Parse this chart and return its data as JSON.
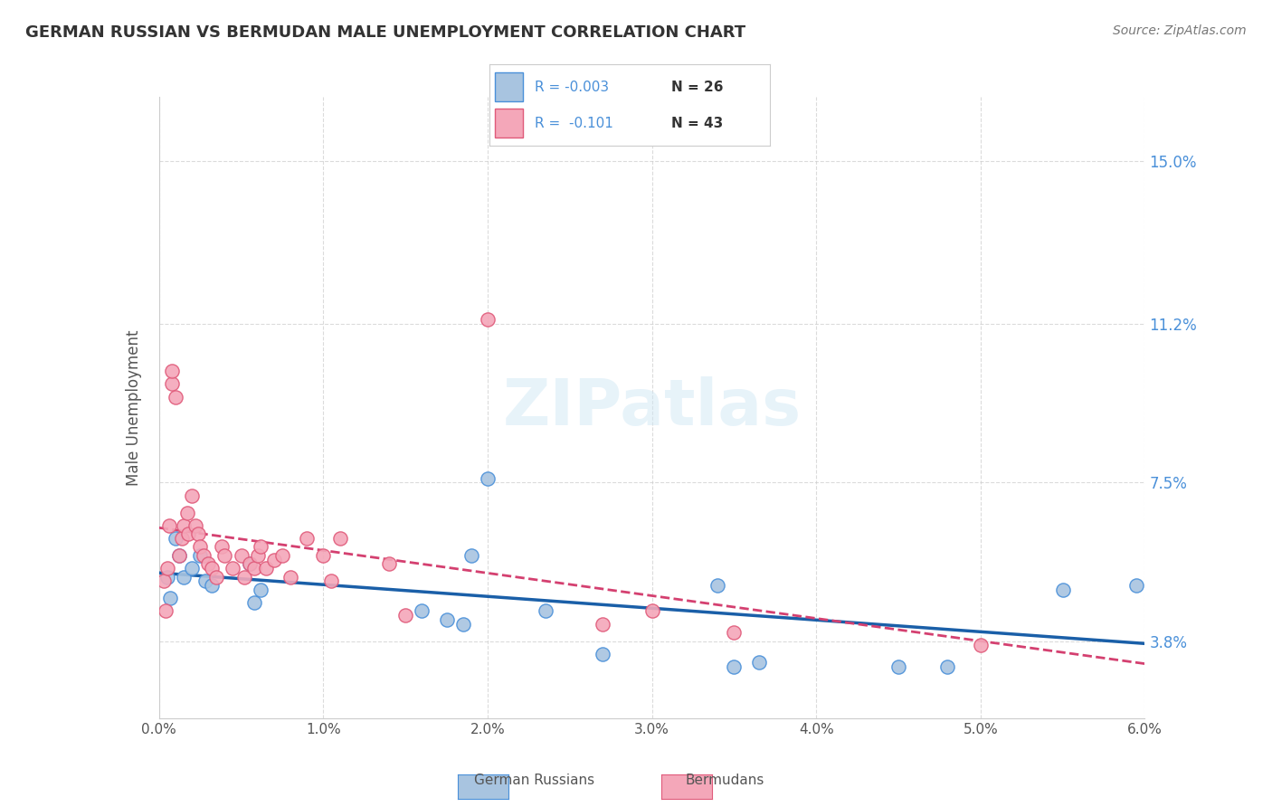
{
  "title": "GERMAN RUSSIAN VS BERMUDAN MALE UNEMPLOYMENT CORRELATION CHART",
  "source": "Source: ZipAtlas.com",
  "xlabel_ticks": [
    "0.0%",
    "1.0%",
    "2.0%",
    "3.0%",
    "4.0%",
    "5.0%",
    "6.0%"
  ],
  "ylabel_ticks": [
    "3.8%",
    "7.5%",
    "11.2%",
    "15.0%"
  ],
  "ylabel_label": "Male Unemployment",
  "legend_label1": "German Russians",
  "legend_label2": "Bermudans",
  "legend_R1": "R = -0.003",
  "legend_N1": "N = 26",
  "legend_R2": "R =  -0.101",
  "legend_N2": "N = 43",
  "watermark": "ZIPatlas",
  "xmin": 0.0,
  "xmax": 6.0,
  "ymin": 2.0,
  "ymax": 16.5,
  "color_blue": "#a8c4e0",
  "color_pink": "#f4a7b9",
  "color_blue_dark": "#4a90d9",
  "color_pink_dark": "#e05a7a",
  "color_line_blue": "#1a5fa8",
  "color_line_pink": "#d44070",
  "ytick_color": "#4a90d9",
  "german_russian_x": [
    0.05,
    0.07,
    0.1,
    0.12,
    0.15,
    0.2,
    0.25,
    0.28,
    0.32,
    0.55,
    0.58,
    0.62,
    1.6,
    1.75,
    1.85,
    1.9,
    2.0,
    2.35,
    2.7,
    3.4,
    3.5,
    3.65,
    4.5,
    4.8,
    5.5,
    5.95
  ],
  "german_russian_y": [
    5.3,
    4.8,
    6.2,
    5.8,
    5.3,
    5.5,
    5.8,
    5.2,
    5.1,
    5.6,
    4.7,
    5.0,
    4.5,
    4.3,
    4.2,
    5.8,
    7.6,
    4.5,
    3.5,
    5.1,
    3.2,
    3.3,
    3.2,
    3.2,
    5.0,
    5.1
  ],
  "bermudan_x": [
    0.03,
    0.04,
    0.05,
    0.06,
    0.08,
    0.08,
    0.1,
    0.12,
    0.14,
    0.15,
    0.17,
    0.18,
    0.2,
    0.22,
    0.24,
    0.25,
    0.27,
    0.3,
    0.32,
    0.35,
    0.38,
    0.4,
    0.45,
    0.5,
    0.52,
    0.55,
    0.58,
    0.6,
    0.62,
    0.65,
    0.7,
    0.75,
    0.8,
    0.9,
    1.0,
    1.05,
    1.1,
    1.4,
    1.5,
    2.7,
    3.0,
    3.5,
    5.0
  ],
  "bermudan_y": [
    5.2,
    4.5,
    5.5,
    6.5,
    9.8,
    10.1,
    9.5,
    5.8,
    6.2,
    6.5,
    6.8,
    6.3,
    7.2,
    6.5,
    6.3,
    6.0,
    5.8,
    5.6,
    5.5,
    5.3,
    6.0,
    5.8,
    5.5,
    5.8,
    5.3,
    5.6,
    5.5,
    5.8,
    6.0,
    5.5,
    5.7,
    5.8,
    5.3,
    6.2,
    5.8,
    5.2,
    6.2,
    5.6,
    4.4,
    4.2,
    4.5,
    4.0,
    3.7
  ],
  "bermudan_outlier_x": 2.0,
  "bermudan_outlier_y": 11.3,
  "bg_color": "#ffffff",
  "grid_color": "#cccccc"
}
